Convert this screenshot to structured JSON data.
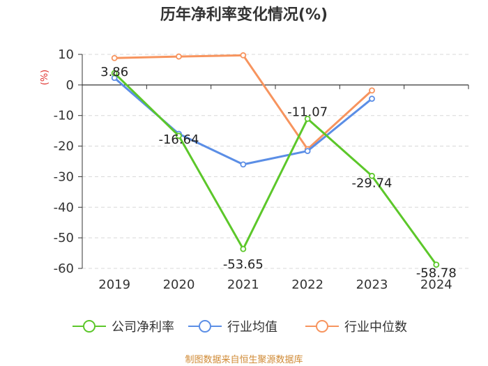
{
  "chart_data": {
    "type": "line",
    "title": "历年净利率变化情况(%)",
    "ylabel": "(%)",
    "xlabel": "",
    "categories": [
      "2019",
      "2020",
      "2021",
      "2022",
      "2023",
      "2024"
    ],
    "ylim": [
      -60,
      10
    ],
    "yticks": [
      10,
      0,
      -10,
      -20,
      -30,
      -40,
      -50,
      -60
    ],
    "series": [
      {
        "name": "公司净利率",
        "color": "#5cc72a",
        "values": [
          3.86,
          -16.64,
          -53.65,
          -11.07,
          -29.74,
          -58.78
        ],
        "labels": [
          "3.86",
          "-16.64",
          "-53.65",
          "-11.07",
          "-29.74",
          "-58.78"
        ]
      },
      {
        "name": "行业均值",
        "color": "#5b8ee6",
        "values": [
          2.3,
          -16.0,
          -26.0,
          -21.6,
          -4.5,
          null
        ]
      },
      {
        "name": "行业中位数",
        "color": "#f7945e",
        "values": [
          8.8,
          9.3,
          9.7,
          -21.0,
          -1.8,
          null
        ]
      }
    ],
    "source": "制图数据来自恒生聚源数据库"
  }
}
